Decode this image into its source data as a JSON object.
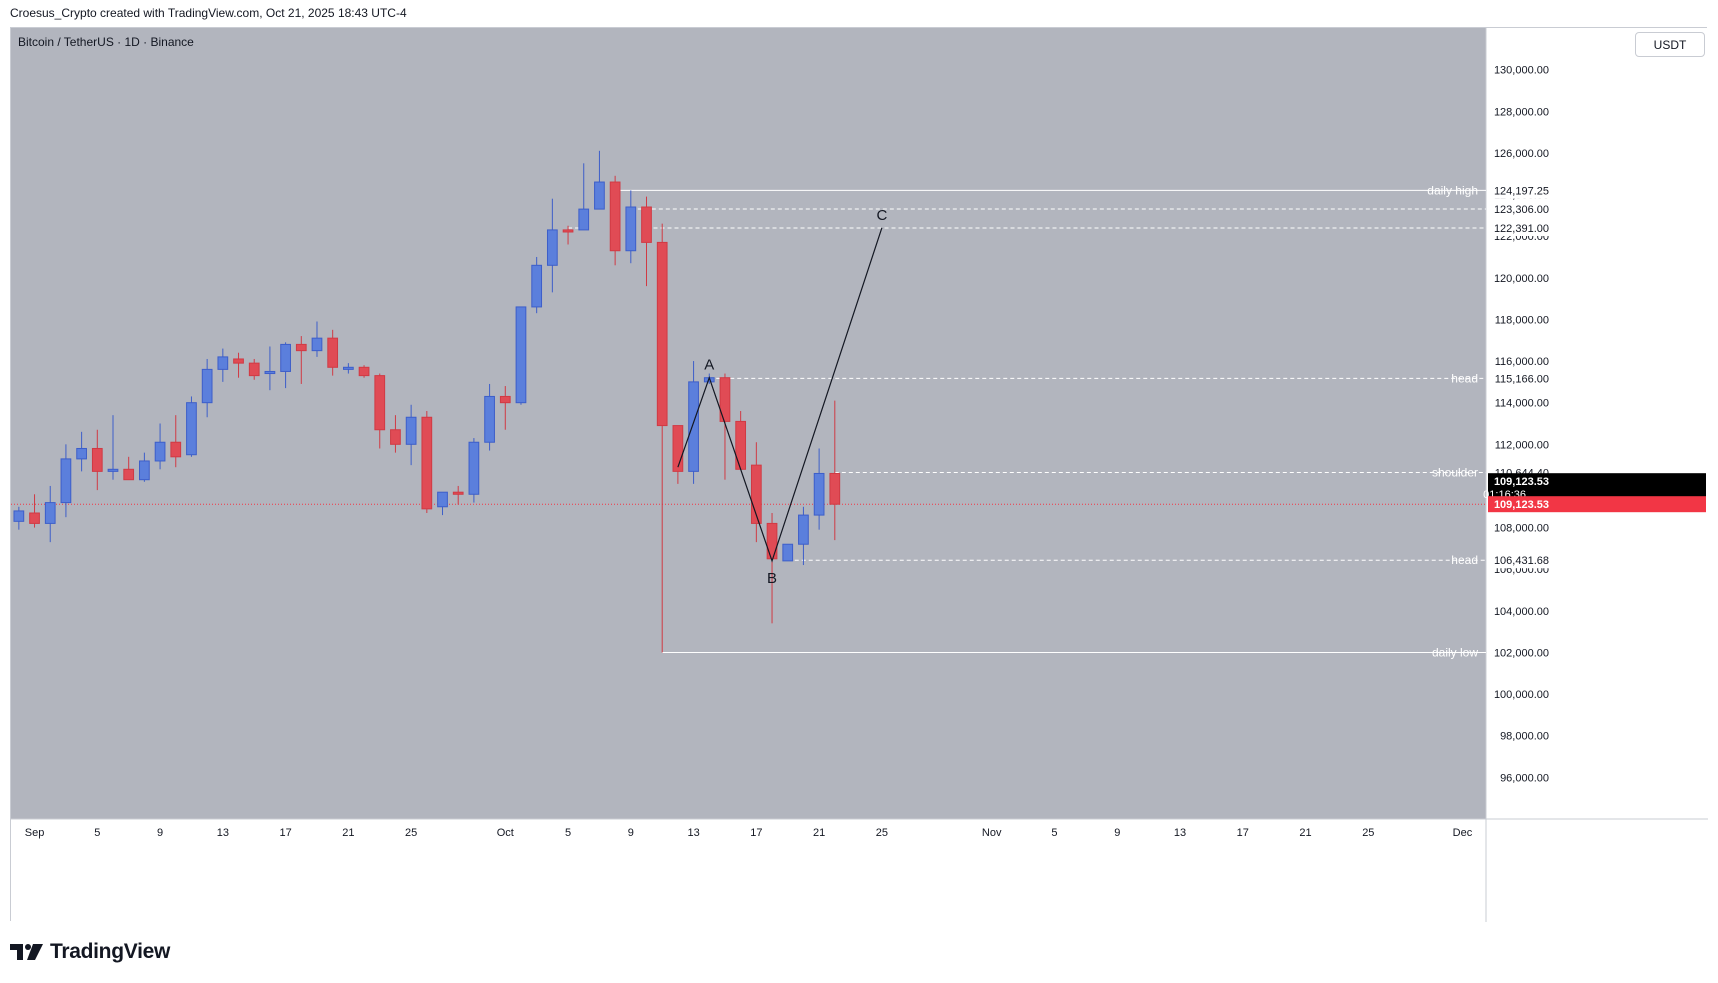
{
  "header": {
    "attribution": "Croesus_Crypto created with TradingView.com, Oct 21, 2025 18:43 UTC-4"
  },
  "symbol": {
    "title": "Bitcoin / TetherUS · 1D · Binance"
  },
  "currency_button": "USDT",
  "countdown": "01:16:36",
  "logo": {
    "text": "TradingView",
    "icon": "tradingview-logo-icon"
  },
  "colors": {
    "plot_bg": "#b2b5be",
    "up": "#5b7fdc",
    "down": "#e04b55",
    "wick_up": "#3d5ec9",
    "wick_down": "#d03a44",
    "level_line": "#ffffff",
    "current_price": "#f23645",
    "last_price_bg": "#000000"
  },
  "chart_data": {
    "type": "candlestick",
    "title": "Bitcoin / TetherUS · 1D · Binance",
    "ylim": [
      94000,
      132000
    ],
    "y_ticks": [
      96000,
      98000,
      100000,
      102000,
      104000,
      106000,
      108000,
      110000,
      112000,
      114000,
      116000,
      118000,
      120000,
      122000,
      124000,
      126000,
      128000,
      130000
    ],
    "y_tick_labels": [
      "96,000.00",
      "98,000.00",
      "100,000.00",
      "102,000.00",
      "104,000.00",
      "106,000.00",
      "108,000.00",
      "110,000.00",
      "112,000.00",
      "114,000.00",
      "116,000.00",
      "118,000.00",
      "120,000.00",
      "122,000.00",
      "124,000.00",
      "126,000.00",
      "128,000.00",
      "130,000.00"
    ],
    "x_ticks": [
      {
        "label": "Sep",
        "date": "2025-09-01"
      },
      {
        "label": "5",
        "date": "2025-09-05"
      },
      {
        "label": "9",
        "date": "2025-09-09"
      },
      {
        "label": "13",
        "date": "2025-09-13"
      },
      {
        "label": "17",
        "date": "2025-09-17"
      },
      {
        "label": "21",
        "date": "2025-09-21"
      },
      {
        "label": "25",
        "date": "2025-09-25"
      },
      {
        "label": "Oct",
        "date": "2025-10-01"
      },
      {
        "label": "5",
        "date": "2025-10-05"
      },
      {
        "label": "9",
        "date": "2025-10-09"
      },
      {
        "label": "13",
        "date": "2025-10-13"
      },
      {
        "label": "17",
        "date": "2025-10-17"
      },
      {
        "label": "21",
        "date": "2025-10-21"
      },
      {
        "label": "25",
        "date": "2025-10-25"
      },
      {
        "label": "Nov",
        "date": "2025-11-01"
      },
      {
        "label": "5",
        "date": "2025-11-05"
      },
      {
        "label": "9",
        "date": "2025-11-09"
      },
      {
        "label": "13",
        "date": "2025-11-13"
      },
      {
        "label": "17",
        "date": "2025-11-17"
      },
      {
        "label": "21",
        "date": "2025-11-21"
      },
      {
        "label": "25",
        "date": "2025-11-25"
      },
      {
        "label": "Dec",
        "date": "2025-12-01"
      }
    ],
    "x_range": [
      "2025-08-31",
      "2025-12-03"
    ],
    "candles": [
      {
        "d": "2025-08-31",
        "o": 108300,
        "h": 109000,
        "l": 107900,
        "c": 108800
      },
      {
        "d": "2025-09-01",
        "o": 108700,
        "h": 109600,
        "l": 108000,
        "c": 108200
      },
      {
        "d": "2025-09-02",
        "o": 108200,
        "h": 110000,
        "l": 107300,
        "c": 109200
      },
      {
        "d": "2025-09-03",
        "o": 109200,
        "h": 112000,
        "l": 108500,
        "c": 111300
      },
      {
        "d": "2025-09-04",
        "o": 111300,
        "h": 112600,
        "l": 110700,
        "c": 111800
      },
      {
        "d": "2025-09-05",
        "o": 111800,
        "h": 112700,
        "l": 109800,
        "c": 110700
      },
      {
        "d": "2025-09-06",
        "o": 110700,
        "h": 113400,
        "l": 110300,
        "c": 110800
      },
      {
        "d": "2025-09-07",
        "o": 110800,
        "h": 111400,
        "l": 110300,
        "c": 110300
      },
      {
        "d": "2025-09-08",
        "o": 110300,
        "h": 111600,
        "l": 110200,
        "c": 111200
      },
      {
        "d": "2025-09-09",
        "o": 111200,
        "h": 113000,
        "l": 110800,
        "c": 112100
      },
      {
        "d": "2025-09-10",
        "o": 112100,
        "h": 113400,
        "l": 110900,
        "c": 111400
      },
      {
        "d": "2025-09-11",
        "o": 111500,
        "h": 114300,
        "l": 111400,
        "c": 114000
      },
      {
        "d": "2025-09-12",
        "o": 114000,
        "h": 116100,
        "l": 113300,
        "c": 115600
      },
      {
        "d": "2025-09-13",
        "o": 115600,
        "h": 116600,
        "l": 115000,
        "c": 116200
      },
      {
        "d": "2025-09-14",
        "o": 116100,
        "h": 116400,
        "l": 115200,
        "c": 115900
      },
      {
        "d": "2025-09-15",
        "o": 115900,
        "h": 116100,
        "l": 115100,
        "c": 115300
      },
      {
        "d": "2025-09-16",
        "o": 115400,
        "h": 116700,
        "l": 114600,
        "c": 115500
      },
      {
        "d": "2025-09-17",
        "o": 115500,
        "h": 116900,
        "l": 114700,
        "c": 116800
      },
      {
        "d": "2025-09-18",
        "o": 116800,
        "h": 117200,
        "l": 114900,
        "c": 116500
      },
      {
        "d": "2025-09-19",
        "o": 116500,
        "h": 117900,
        "l": 116200,
        "c": 117100
      },
      {
        "d": "2025-09-20",
        "o": 117100,
        "h": 117500,
        "l": 115300,
        "c": 115700
      },
      {
        "d": "2025-09-21",
        "o": 115600,
        "h": 115900,
        "l": 115400,
        "c": 115700
      },
      {
        "d": "2025-09-22",
        "o": 115700,
        "h": 115800,
        "l": 115200,
        "c": 115300
      },
      {
        "d": "2025-09-23",
        "o": 115300,
        "h": 115400,
        "l": 111800,
        "c": 112700
      },
      {
        "d": "2025-09-24",
        "o": 112700,
        "h": 113400,
        "l": 111600,
        "c": 112000
      },
      {
        "d": "2025-09-25",
        "o": 112000,
        "h": 113900,
        "l": 111000,
        "c": 113300
      },
      {
        "d": "2025-09-26",
        "o": 113300,
        "h": 113600,
        "l": 108700,
        "c": 108900
      },
      {
        "d": "2025-09-27",
        "o": 109000,
        "h": 109600,
        "l": 108600,
        "c": 109700
      },
      {
        "d": "2025-09-28",
        "o": 109700,
        "h": 110000,
        "l": 109100,
        "c": 109600
      },
      {
        "d": "2025-09-29",
        "o": 109600,
        "h": 112300,
        "l": 109200,
        "c": 112100
      },
      {
        "d": "2025-09-30",
        "o": 112100,
        "h": 114900,
        "l": 111700,
        "c": 114300
      },
      {
        "d": "2025-10-01",
        "o": 114300,
        "h": 114800,
        "l": 112700,
        "c": 114000
      },
      {
        "d": "2025-10-02",
        "o": 114000,
        "h": 118600,
        "l": 113900,
        "c": 118600
      },
      {
        "d": "2025-10-03",
        "o": 118600,
        "h": 121000,
        "l": 118300,
        "c": 120600
      },
      {
        "d": "2025-10-04",
        "o": 120600,
        "h": 123800,
        "l": 119300,
        "c": 122300
      },
      {
        "d": "2025-10-05",
        "o": 122300,
        "h": 122500,
        "l": 121600,
        "c": 122200
      },
      {
        "d": "2025-10-06",
        "o": 122300,
        "h": 125500,
        "l": 122300,
        "c": 123300
      },
      {
        "d": "2025-10-07",
        "o": 123300,
        "h": 126100,
        "l": 123300,
        "c": 124600
      },
      {
        "d": "2025-10-08",
        "o": 124600,
        "h": 124900,
        "l": 120600,
        "c": 121300
      },
      {
        "d": "2025-10-09",
        "o": 121300,
        "h": 124200,
        "l": 120700,
        "c": 123400
      },
      {
        "d": "2025-10-10",
        "o": 123400,
        "h": 123900,
        "l": 119600,
        "c": 121700
      },
      {
        "d": "2025-10-11",
        "o": 121700,
        "h": 122600,
        "l": 102000,
        "c": 112900
      },
      {
        "d": "2025-10-12",
        "o": 112900,
        "h": 112900,
        "l": 110100,
        "c": 110700
      },
      {
        "d": "2025-10-13",
        "o": 110700,
        "h": 116000,
        "l": 110100,
        "c": 115000
      },
      {
        "d": "2025-10-14",
        "o": 115000,
        "h": 115400,
        "l": 114900,
        "c": 115200
      },
      {
        "d": "2025-10-15",
        "o": 115200,
        "h": 115400,
        "l": 110300,
        "c": 113100
      },
      {
        "d": "2025-10-16",
        "o": 113100,
        "h": 113600,
        "l": 110800,
        "c": 110800
      },
      {
        "d": "2025-10-17",
        "o": 111000,
        "h": 112100,
        "l": 107300,
        "c": 108200
      },
      {
        "d": "2025-10-18",
        "o": 108200,
        "h": 108700,
        "l": 103400,
        "c": 106500
      },
      {
        "d": "2025-10-19",
        "o": 106400,
        "h": 107200,
        "l": 106400,
        "c": 107200
      },
      {
        "d": "2025-10-20",
        "o": 107200,
        "h": 109000,
        "l": 106200,
        "c": 108600
      },
      {
        "d": "2025-10-21",
        "o": 108600,
        "h": 111800,
        "l": 107900,
        "c": 110600
      },
      {
        "d": "2025-10-22",
        "o": 110600,
        "h": 114100,
        "l": 107400,
        "c": 109123.53
      }
    ],
    "levels": [
      {
        "label": "daily high",
        "price": 124197.25,
        "price_label": "124,197.25",
        "style": "solid",
        "start": "2025-10-08"
      },
      {
        "label": "",
        "price": 123306,
        "price_label": "123,306.00",
        "style": "dashed",
        "start": "2025-10-09"
      },
      {
        "label": "",
        "price": 122391,
        "price_label": "122,391.00",
        "style": "dashed",
        "start": "2025-10-10"
      },
      {
        "label": "head",
        "price": 115166,
        "price_label": "115,166.00",
        "style": "dashed",
        "start": "2025-10-14"
      },
      {
        "label": "shoulder",
        "price": 110644.4,
        "price_label": "110,644.40",
        "style": "dashed",
        "start": "2025-10-22"
      },
      {
        "label": "head",
        "price": 106431.68,
        "price_label": "106,431.68",
        "style": "dashed",
        "start": "2025-10-19"
      },
      {
        "label": "daily low",
        "price": 102000,
        "price_label": "102,000.00",
        "style": "solid",
        "start": "2025-10-11"
      }
    ],
    "extra_dashes": [
      {
        "price": 122391,
        "from": "2025-10-05",
        "to": "2025-10-06"
      }
    ],
    "last_price": {
      "price": 109123.53,
      "label": "109,123.53"
    },
    "current_price_line": {
      "price": 109123.53,
      "label": "109,123.53"
    },
    "abc_path": [
      {
        "label": "",
        "date": "2025-10-12",
        "price": 110900
      },
      {
        "label": "A",
        "date": "2025-10-14",
        "price": 115200
      },
      {
        "label": "B",
        "date": "2025-10-18",
        "price": 106400
      },
      {
        "label": "C",
        "date": "2025-10-25",
        "price": 122400
      }
    ]
  }
}
